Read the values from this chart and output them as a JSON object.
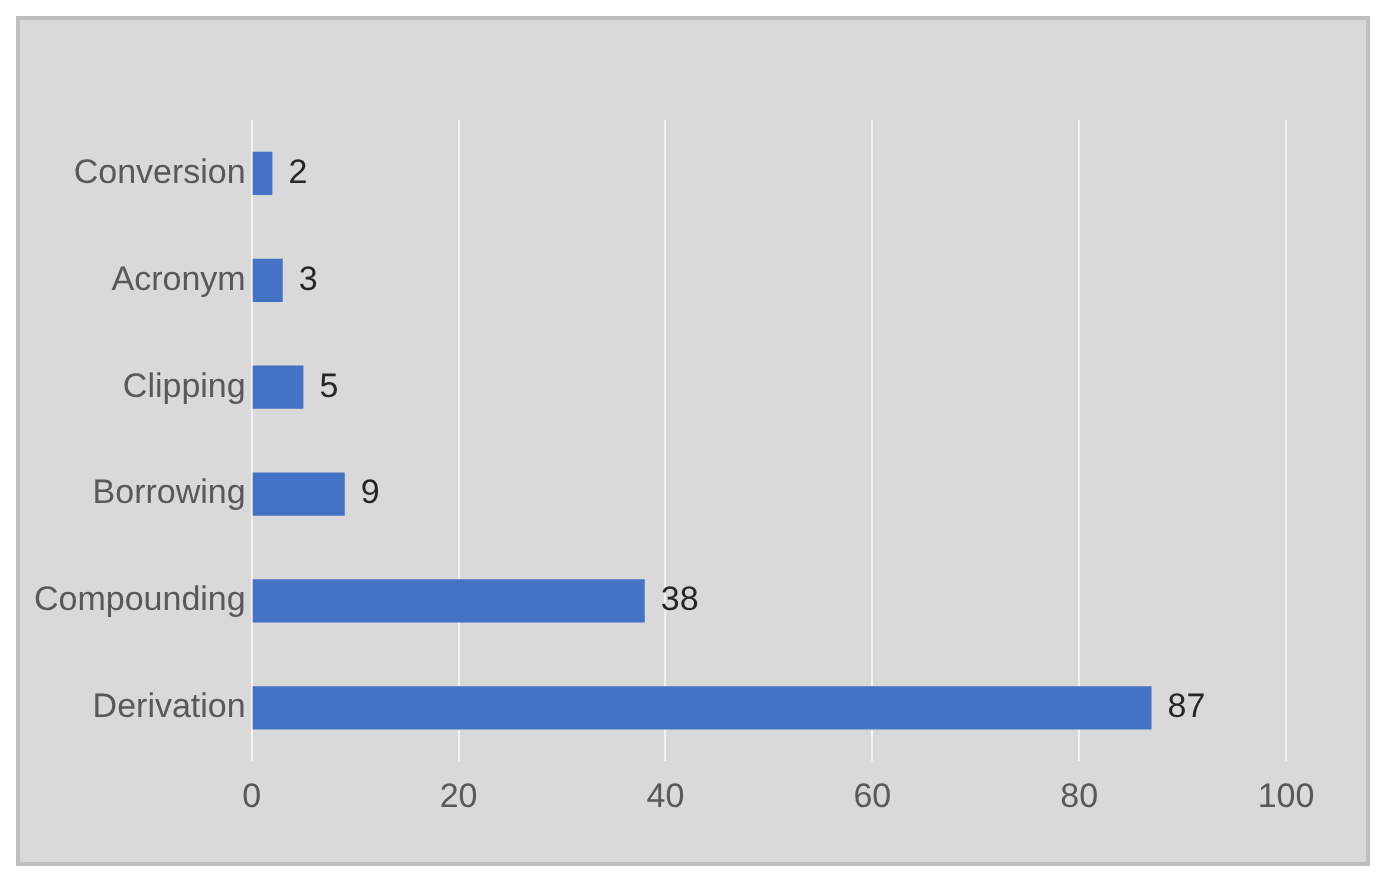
{
  "chart_data": {
    "type": "bar",
    "orientation": "horizontal",
    "categories": [
      "Conversion",
      "Acronym",
      "Clipping",
      "Borrowing",
      "Compounding",
      "Derivation"
    ],
    "values": [
      2,
      3,
      5,
      9,
      38,
      87
    ],
    "color": "#4472c4",
    "xlim": [
      0,
      100
    ],
    "xticks": [
      0,
      20,
      40,
      60,
      80,
      100
    ],
    "grid": "x",
    "data_labels": true
  }
}
